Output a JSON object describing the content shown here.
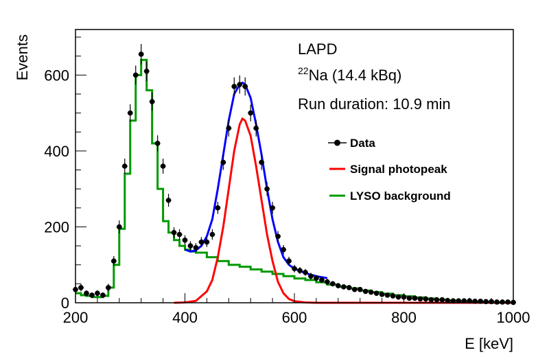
{
  "chart_data": {
    "type": "line",
    "xlabel": "E [keV]",
    "ylabel": "Events",
    "xlim": [
      200,
      1000
    ],
    "ylim": [
      0,
      720
    ],
    "x_ticks": [
      200,
      400,
      600,
      800,
      1000
    ],
    "y_ticks": [
      0,
      200,
      400,
      600
    ],
    "annotations": {
      "experiment": "LAPD",
      "source_mass": "22",
      "source_name": "Na (14.4 kBq)",
      "run": "Run duration: 10.9 min"
    },
    "legend": {
      "placement": "right",
      "entries": [
        "Data",
        "Signal photopeak",
        "LYSO background"
      ]
    },
    "colors": {
      "data": "#000000",
      "total_fit": "#0000ff",
      "signal": "#ff0000",
      "background": "#009900"
    },
    "series": [
      {
        "name": "Data",
        "type": "scatter",
        "x": [
          200,
          210,
          220,
          230,
          240,
          250,
          260,
          270,
          280,
          290,
          300,
          310,
          320,
          330,
          340,
          350,
          360,
          370,
          380,
          390,
          400,
          410,
          420,
          430,
          440,
          450,
          460,
          470,
          480,
          490,
          500,
          510,
          520,
          530,
          540,
          550,
          560,
          570,
          580,
          590,
          600,
          610,
          620,
          630,
          640,
          650,
          660,
          670,
          680,
          690,
          700,
          710,
          720,
          730,
          740,
          750,
          760,
          770,
          780,
          790,
          800,
          810,
          820,
          830,
          840,
          850,
          860,
          870,
          880,
          890,
          900,
          910,
          920,
          930,
          940,
          950,
          960,
          970,
          980,
          990,
          1000
        ],
        "y": [
          35,
          40,
          25,
          20,
          25,
          20,
          40,
          110,
          200,
          360,
          500,
          600,
          655,
          610,
          530,
          420,
          360,
          270,
          185,
          180,
          165,
          150,
          145,
          160,
          160,
          180,
          250,
          370,
          460,
          570,
          575,
          570,
          500,
          460,
          370,
          300,
          250,
          175,
          140,
          110,
          90,
          85,
          80,
          70,
          65,
          60,
          55,
          50,
          45,
          42,
          40,
          35,
          35,
          30,
          28,
          25,
          22,
          20,
          18,
          15,
          15,
          12,
          12,
          10,
          10,
          8,
          8,
          8,
          6,
          5,
          5,
          5,
          5,
          4,
          4,
          3,
          3,
          2,
          2,
          2,
          1
        ],
        "yerr": [
          10,
          10,
          8,
          7,
          8,
          7,
          10,
          13,
          17,
          20,
          23,
          25,
          27,
          26,
          24,
          21,
          20,
          17,
          14,
          14,
          13,
          12,
          12,
          13,
          13,
          14,
          16,
          20,
          22,
          24,
          24,
          24,
          22,
          22,
          20,
          18,
          16,
          14,
          12,
          11,
          10,
          9,
          9,
          9,
          8,
          8,
          8,
          7,
          7,
          7,
          6,
          6,
          6,
          6,
          5,
          5,
          5,
          5,
          5,
          4,
          4,
          4,
          4,
          4,
          4,
          3,
          3,
          3,
          3,
          3,
          3,
          3,
          3,
          2,
          2,
          2,
          2,
          2,
          2,
          2,
          1
        ]
      },
      {
        "name": "Signal photopeak",
        "type": "line",
        "x": [
          380,
          400,
          420,
          440,
          450,
          460,
          470,
          480,
          490,
          500,
          505,
          510,
          520,
          530,
          540,
          550,
          560,
          570,
          580,
          590,
          600,
          620,
          640,
          660,
          700,
          800,
          1000
        ],
        "y": [
          0,
          1,
          5,
          30,
          60,
          120,
          200,
          300,
          400,
          470,
          485,
          480,
          440,
          360,
          270,
          180,
          110,
          55,
          25,
          10,
          4,
          1,
          0,
          0,
          0,
          0,
          0
        ]
      },
      {
        "name": "Total fit",
        "type": "line",
        "x": [
          400,
          410,
          420,
          430,
          440,
          450,
          460,
          470,
          480,
          490,
          500,
          505,
          510,
          520,
          530,
          540,
          550,
          560,
          570,
          580,
          590,
          600,
          620,
          640,
          660
        ],
        "y": [
          140,
          135,
          138,
          150,
          175,
          220,
          300,
          390,
          480,
          550,
          575,
          580,
          575,
          540,
          470,
          390,
          300,
          220,
          160,
          120,
          100,
          90,
          78,
          70,
          65
        ]
      },
      {
        "name": "LYSO background",
        "type": "step",
        "x": [
          200,
          210,
          220,
          230,
          240,
          250,
          260,
          270,
          280,
          290,
          300,
          310,
          320,
          330,
          340,
          350,
          360,
          370,
          380,
          390,
          400,
          410,
          420,
          440,
          460,
          480,
          500,
          520,
          540,
          560,
          580,
          600,
          620,
          640,
          660,
          680,
          700,
          720,
          740,
          760,
          780,
          800,
          820,
          840,
          860,
          880,
          900,
          920,
          940,
          960,
          980,
          1000
        ],
        "y": [
          25,
          20,
          18,
          15,
          15,
          18,
          40,
          100,
          195,
          340,
          480,
          600,
          640,
          560,
          420,
          300,
          215,
          185,
          165,
          150,
          140,
          135,
          132,
          120,
          110,
          100,
          95,
          88,
          82,
          76,
          70,
          64,
          60,
          54,
          48,
          42,
          38,
          32,
          28,
          24,
          20,
          17,
          14,
          11,
          8,
          6,
          4,
          3,
          2,
          1,
          1,
          0
        ]
      }
    ]
  }
}
